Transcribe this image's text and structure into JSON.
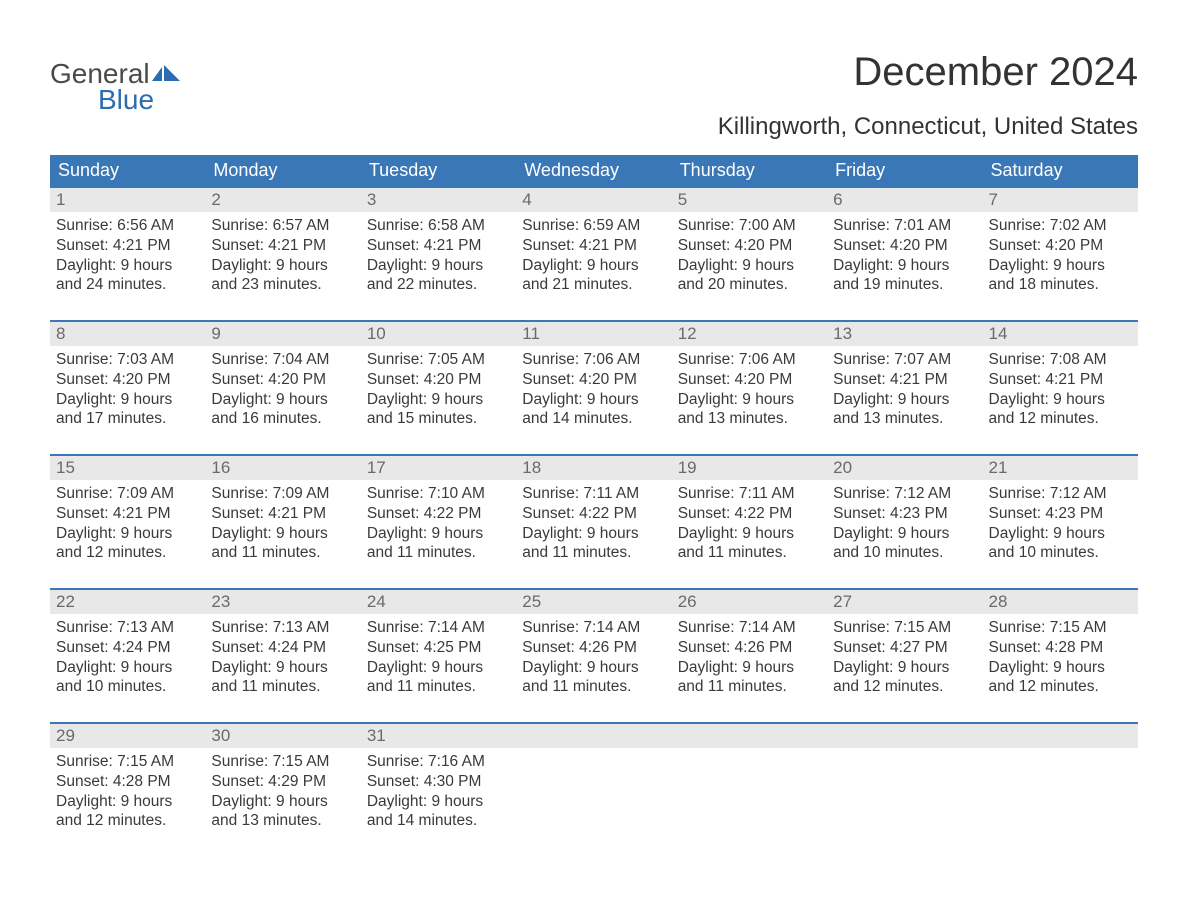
{
  "brand": {
    "part1": "General",
    "part2": "Blue",
    "flag_color": "#2b6db0"
  },
  "title": "December 2024",
  "location": "Killingworth, Connecticut, United States",
  "colors": {
    "header_bg": "#3a77b6",
    "header_text": "#ffffff",
    "daynum_bg": "#e8e8e8",
    "daynum_text": "#6a6a6a",
    "body_text": "#3a3a3a",
    "row_border": "#3a77b6",
    "page_bg": "#ffffff"
  },
  "day_names": [
    "Sunday",
    "Monday",
    "Tuesday",
    "Wednesday",
    "Thursday",
    "Friday",
    "Saturday"
  ],
  "weeks": [
    [
      {
        "n": "1",
        "sr": "Sunrise: 6:56 AM",
        "ss": "Sunset: 4:21 PM",
        "d1": "Daylight: 9 hours",
        "d2": "and 24 minutes."
      },
      {
        "n": "2",
        "sr": "Sunrise: 6:57 AM",
        "ss": "Sunset: 4:21 PM",
        "d1": "Daylight: 9 hours",
        "d2": "and 23 minutes."
      },
      {
        "n": "3",
        "sr": "Sunrise: 6:58 AM",
        "ss": "Sunset: 4:21 PM",
        "d1": "Daylight: 9 hours",
        "d2": "and 22 minutes."
      },
      {
        "n": "4",
        "sr": "Sunrise: 6:59 AM",
        "ss": "Sunset: 4:21 PM",
        "d1": "Daylight: 9 hours",
        "d2": "and 21 minutes."
      },
      {
        "n": "5",
        "sr": "Sunrise: 7:00 AM",
        "ss": "Sunset: 4:20 PM",
        "d1": "Daylight: 9 hours",
        "d2": "and 20 minutes."
      },
      {
        "n": "6",
        "sr": "Sunrise: 7:01 AM",
        "ss": "Sunset: 4:20 PM",
        "d1": "Daylight: 9 hours",
        "d2": "and 19 minutes."
      },
      {
        "n": "7",
        "sr": "Sunrise: 7:02 AM",
        "ss": "Sunset: 4:20 PM",
        "d1": "Daylight: 9 hours",
        "d2": "and 18 minutes."
      }
    ],
    [
      {
        "n": "8",
        "sr": "Sunrise: 7:03 AM",
        "ss": "Sunset: 4:20 PM",
        "d1": "Daylight: 9 hours",
        "d2": "and 17 minutes."
      },
      {
        "n": "9",
        "sr": "Sunrise: 7:04 AM",
        "ss": "Sunset: 4:20 PM",
        "d1": "Daylight: 9 hours",
        "d2": "and 16 minutes."
      },
      {
        "n": "10",
        "sr": "Sunrise: 7:05 AM",
        "ss": "Sunset: 4:20 PM",
        "d1": "Daylight: 9 hours",
        "d2": "and 15 minutes."
      },
      {
        "n": "11",
        "sr": "Sunrise: 7:06 AM",
        "ss": "Sunset: 4:20 PM",
        "d1": "Daylight: 9 hours",
        "d2": "and 14 minutes."
      },
      {
        "n": "12",
        "sr": "Sunrise: 7:06 AM",
        "ss": "Sunset: 4:20 PM",
        "d1": "Daylight: 9 hours",
        "d2": "and 13 minutes."
      },
      {
        "n": "13",
        "sr": "Sunrise: 7:07 AM",
        "ss": "Sunset: 4:21 PM",
        "d1": "Daylight: 9 hours",
        "d2": "and 13 minutes."
      },
      {
        "n": "14",
        "sr": "Sunrise: 7:08 AM",
        "ss": "Sunset: 4:21 PM",
        "d1": "Daylight: 9 hours",
        "d2": "and 12 minutes."
      }
    ],
    [
      {
        "n": "15",
        "sr": "Sunrise: 7:09 AM",
        "ss": "Sunset: 4:21 PM",
        "d1": "Daylight: 9 hours",
        "d2": "and 12 minutes."
      },
      {
        "n": "16",
        "sr": "Sunrise: 7:09 AM",
        "ss": "Sunset: 4:21 PM",
        "d1": "Daylight: 9 hours",
        "d2": "and 11 minutes."
      },
      {
        "n": "17",
        "sr": "Sunrise: 7:10 AM",
        "ss": "Sunset: 4:22 PM",
        "d1": "Daylight: 9 hours",
        "d2": "and 11 minutes."
      },
      {
        "n": "18",
        "sr": "Sunrise: 7:11 AM",
        "ss": "Sunset: 4:22 PM",
        "d1": "Daylight: 9 hours",
        "d2": "and 11 minutes."
      },
      {
        "n": "19",
        "sr": "Sunrise: 7:11 AM",
        "ss": "Sunset: 4:22 PM",
        "d1": "Daylight: 9 hours",
        "d2": "and 11 minutes."
      },
      {
        "n": "20",
        "sr": "Sunrise: 7:12 AM",
        "ss": "Sunset: 4:23 PM",
        "d1": "Daylight: 9 hours",
        "d2": "and 10 minutes."
      },
      {
        "n": "21",
        "sr": "Sunrise: 7:12 AM",
        "ss": "Sunset: 4:23 PM",
        "d1": "Daylight: 9 hours",
        "d2": "and 10 minutes."
      }
    ],
    [
      {
        "n": "22",
        "sr": "Sunrise: 7:13 AM",
        "ss": "Sunset: 4:24 PM",
        "d1": "Daylight: 9 hours",
        "d2": "and 10 minutes."
      },
      {
        "n": "23",
        "sr": "Sunrise: 7:13 AM",
        "ss": "Sunset: 4:24 PM",
        "d1": "Daylight: 9 hours",
        "d2": "and 11 minutes."
      },
      {
        "n": "24",
        "sr": "Sunrise: 7:14 AM",
        "ss": "Sunset: 4:25 PM",
        "d1": "Daylight: 9 hours",
        "d2": "and 11 minutes."
      },
      {
        "n": "25",
        "sr": "Sunrise: 7:14 AM",
        "ss": "Sunset: 4:26 PM",
        "d1": "Daylight: 9 hours",
        "d2": "and 11 minutes."
      },
      {
        "n": "26",
        "sr": "Sunrise: 7:14 AM",
        "ss": "Sunset: 4:26 PM",
        "d1": "Daylight: 9 hours",
        "d2": "and 11 minutes."
      },
      {
        "n": "27",
        "sr": "Sunrise: 7:15 AM",
        "ss": "Sunset: 4:27 PM",
        "d1": "Daylight: 9 hours",
        "d2": "and 12 minutes."
      },
      {
        "n": "28",
        "sr": "Sunrise: 7:15 AM",
        "ss": "Sunset: 4:28 PM",
        "d1": "Daylight: 9 hours",
        "d2": "and 12 minutes."
      }
    ],
    [
      {
        "n": "29",
        "sr": "Sunrise: 7:15 AM",
        "ss": "Sunset: 4:28 PM",
        "d1": "Daylight: 9 hours",
        "d2": "and 12 minutes."
      },
      {
        "n": "30",
        "sr": "Sunrise: 7:15 AM",
        "ss": "Sunset: 4:29 PM",
        "d1": "Daylight: 9 hours",
        "d2": "and 13 minutes."
      },
      {
        "n": "31",
        "sr": "Sunrise: 7:16 AM",
        "ss": "Sunset: 4:30 PM",
        "d1": "Daylight: 9 hours",
        "d2": "and 14 minutes."
      },
      null,
      null,
      null,
      null
    ]
  ]
}
